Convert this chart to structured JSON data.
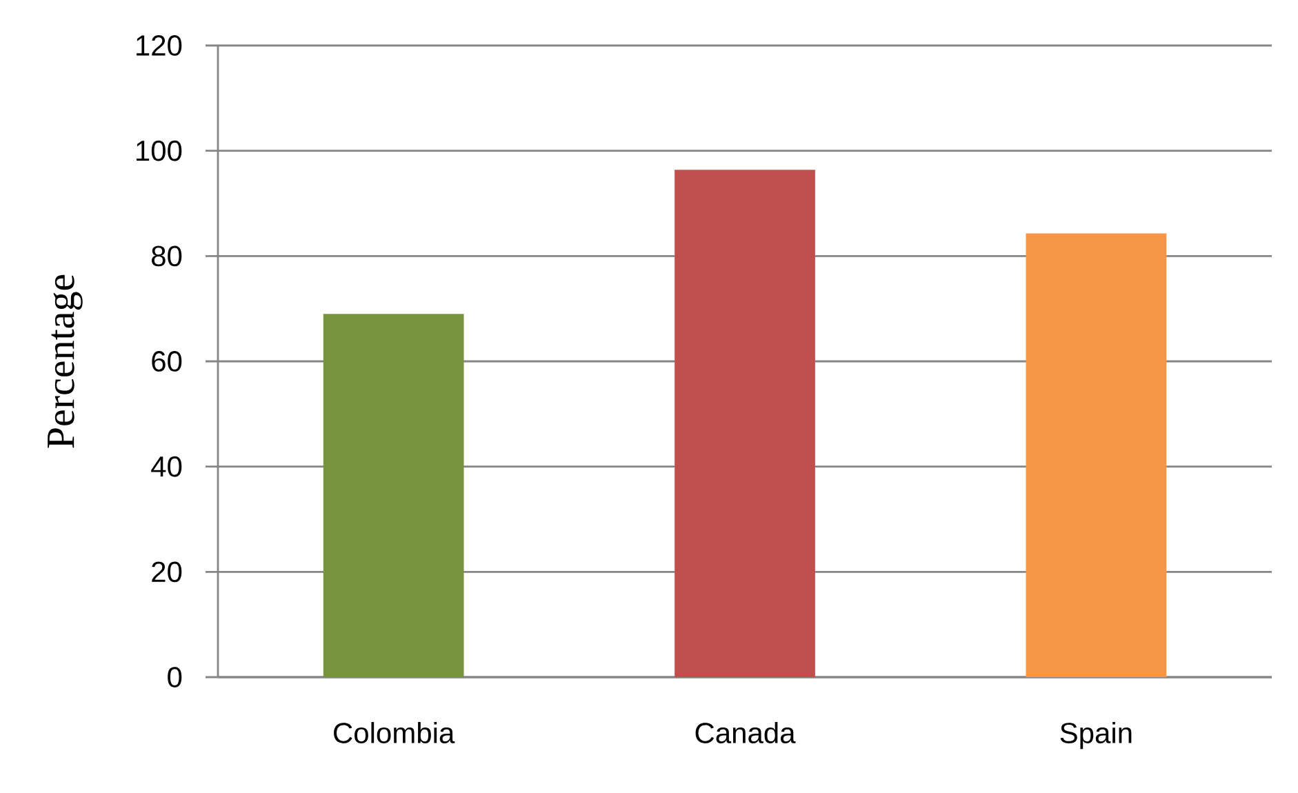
{
  "chart_data": {
    "type": "bar",
    "categories": [
      "Colombia",
      "Canada",
      "Spain"
    ],
    "values": [
      69,
      96.4,
      84.3
    ],
    "colors": [
      "#77933c",
      "#c0504d",
      "#f79646"
    ],
    "ylabel": "Percentage",
    "ylim": [
      0,
      120
    ],
    "yticks": [
      0,
      20,
      40,
      60,
      80,
      100,
      120
    ],
    "grid": "y"
  }
}
